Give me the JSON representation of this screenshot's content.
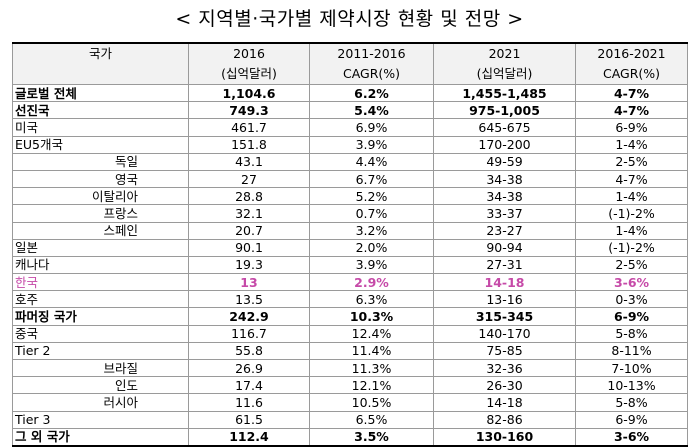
{
  "title": "< 지역별·국가별 제약시장 현황 및 전망 >",
  "header": {
    "country": "국가",
    "col1_top": "2016",
    "col1_bottom": "(십억달러)",
    "col2_top": "2011-2016",
    "col2_bottom": "CAGR(%)",
    "col3_top": "2021",
    "col3_bottom": "(십억달러)",
    "col4_top": "2016-2021",
    "col4_bottom": "CAGR(%)"
  },
  "rows": [
    {
      "name": "글로벌 전체",
      "v2016": "1,104.6",
      "cagr1": "6.2%",
      "v2021": "1,455-1,485",
      "cagr2": "4-7%"
    },
    {
      "name": "선진국",
      "v2016": "749.3",
      "cagr1": "5.4%",
      "v2021": "975-1,005",
      "cagr2": "4-7%"
    },
    {
      "name": "미국",
      "v2016": "461.7",
      "cagr1": "6.9%",
      "v2021": "645-675",
      "cagr2": "6-9%"
    },
    {
      "name": "EU5개국",
      "v2016": "151.8",
      "cagr1": "3.9%",
      "v2021": "170-200",
      "cagr2": "1-4%"
    },
    {
      "name": "독일",
      "v2016": "43.1",
      "cagr1": "4.4%",
      "v2021": "49-59",
      "cagr2": "2-5%"
    },
    {
      "name": "영국",
      "v2016": "27",
      "cagr1": "6.7%",
      "v2021": "34-38",
      "cagr2": "4-7%"
    },
    {
      "name": "이탈리아",
      "v2016": "28.8",
      "cagr1": "5.2%",
      "v2021": "34-38",
      "cagr2": "1-4%"
    },
    {
      "name": "프랑스",
      "v2016": "32.1",
      "cagr1": "0.7%",
      "v2021": "33-37",
      "cagr2": "(-1)-2%"
    },
    {
      "name": "스페인",
      "v2016": "20.7",
      "cagr1": "3.2%",
      "v2021": "23-27",
      "cagr2": "1-4%"
    },
    {
      "name": "일본",
      "v2016": "90.1",
      "cagr1": "2.0%",
      "v2021": "90-94",
      "cagr2": "(-1)-2%"
    },
    {
      "name": "캐나다",
      "v2016": "19.3",
      "cagr1": "3.9%",
      "v2021": "27-31",
      "cagr2": "2-5%"
    },
    {
      "name": "한국",
      "v2016": "13",
      "cagr1": "2.9%",
      "v2021": "14-18",
      "cagr2": "3-6%"
    },
    {
      "name": "호주",
      "v2016": "13.5",
      "cagr1": "6.3%",
      "v2021": "13-16",
      "cagr2": "0-3%"
    },
    {
      "name": "파머징 국가",
      "v2016": "242.9",
      "cagr1": "10.3%",
      "v2021": "315-345",
      "cagr2": "6-9%"
    },
    {
      "name": "중국",
      "v2016": "116.7",
      "cagr1": "12.4%",
      "v2021": "140-170",
      "cagr2": "5-8%"
    },
    {
      "name": "Tier 2",
      "v2016": "55.8",
      "cagr1": "11.4%",
      "v2021": "75-85",
      "cagr2": "8-11%"
    },
    {
      "name": "브라질",
      "v2016": "26.9",
      "cagr1": "11.3%",
      "v2021": "32-36",
      "cagr2": "7-10%"
    },
    {
      "name": "인도",
      "v2016": "17.4",
      "cagr1": "12.1%",
      "v2021": "26-30",
      "cagr2": "10-13%"
    },
    {
      "name": "러시아",
      "v2016": "11.6",
      "cagr1": "10.5%",
      "v2021": "14-18",
      "cagr2": "5-8%"
    },
    {
      "name": "Tier 3",
      "v2016": "61.5",
      "cagr1": "6.5%",
      "v2021": "82-86",
      "cagr2": "6-9%"
    },
    {
      "name": "그 외 국가",
      "v2016": "112.4",
      "cagr1": "3.5%",
      "v2021": "130-160",
      "cagr2": "3-6%"
    }
  ],
  "highlight_color": "#c64aa8"
}
